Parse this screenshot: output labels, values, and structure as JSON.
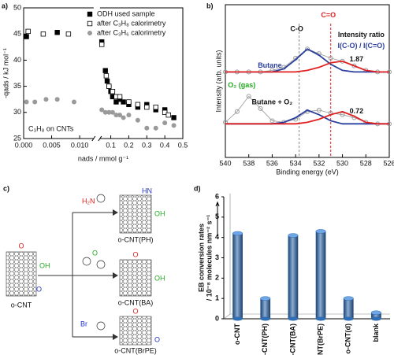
{
  "chart_data": [
    {
      "type": "scatter",
      "title": "a)",
      "xlabel": "nads / mmol g⁻¹",
      "ylabel": "-qads / kJ mol⁻¹",
      "annotations": [
        "C₃H₈ on CNTs"
      ],
      "xlim": [
        0,
        0.5
      ],
      "xbreak": [
        0.0125,
        0.04
      ],
      "xticks": [
        {
          "value": 0,
          "label": "0.000"
        },
        {
          "value": 0.005,
          "label": "0.005"
        },
        {
          "value": 0.01,
          "label": "0.010"
        },
        0.1,
        0.2,
        0.3,
        0.4,
        0.5
      ],
      "ylim": [
        25,
        50
      ],
      "yticks": [
        25,
        30,
        35,
        40,
        45,
        50
      ],
      "legend": "upper right",
      "series": [
        {
          "name": "ODH used sample",
          "color": "#000000",
          "marker": "filled-square",
          "x": [
            0.0005,
            0.006,
            0.05,
            0.07,
            0.08,
            0.09,
            0.1,
            0.11,
            0.13,
            0.15,
            0.17,
            0.2,
            0.25,
            0.3,
            0.35,
            0.4,
            0.45
          ],
          "values": [
            44.5,
            45.3,
            43.5,
            38,
            36,
            35,
            34,
            33,
            32,
            32.5,
            32,
            31.5,
            31,
            31.5,
            30.5,
            30.5,
            29
          ]
        },
        {
          "name": "after C₃H₈ calorimetry",
          "color": "#000000",
          "marker": "open-square",
          "x": [
            0.0008,
            0.0035,
            0.008,
            0.05,
            0.075,
            0.09,
            0.11,
            0.13,
            0.15,
            0.2,
            0.25,
            0.3,
            0.35,
            0.4,
            0.42
          ],
          "values": [
            45.5,
            45,
            45,
            43,
            37,
            35,
            34,
            33,
            33,
            32,
            31.5,
            31,
            31,
            30,
            29.5
          ]
        },
        {
          "name": "after C₃H₆ calorimetry",
          "color": "#9a9a9a",
          "marker": "circle",
          "x": [
            0.0005,
            0.002,
            0.004,
            0.006,
            0.009,
            0.05,
            0.07,
            0.09,
            0.11,
            0.13,
            0.15,
            0.17,
            0.2,
            0.25,
            0.3,
            0.35,
            0.4,
            0.45
          ],
          "values": [
            32,
            32,
            32.5,
            32.5,
            32,
            30.5,
            30,
            30,
            30,
            29.5,
            29.5,
            29,
            29.5,
            28.5,
            27,
            27,
            28,
            27.5
          ]
        }
      ]
    },
    {
      "type": "line",
      "title": "b)",
      "xlabel": "Binding energy (eV)",
      "ylabel": "Intensity (arb. units)",
      "annotations": [
        "C-O",
        "C=O",
        "Intensity ratio",
        "I(C-O) / I(C=O)",
        "1.87",
        "Butane",
        "O₂ (gas)",
        "Butane + O₂",
        "0.72"
      ],
      "reference_lines": [
        {
          "value": 533.7,
          "color": "#888888"
        },
        {
          "value": 531,
          "color": "#e02020"
        }
      ],
      "xlim": [
        540,
        526
      ],
      "xticks": [
        540,
        538,
        536,
        534,
        532,
        530,
        528,
        526
      ],
      "ylim": [
        0,
        100
      ],
      "x": [
        540,
        539,
        538,
        537,
        536,
        535,
        534,
        533,
        532,
        531,
        530,
        529,
        528,
        527,
        526
      ],
      "series": [
        {
          "color": "#999999",
          "marker": "circle",
          "values": [
            56,
            56,
            56,
            56,
            57,
            59,
            65,
            71,
            68,
            65,
            63,
            60,
            57,
            56,
            56
          ]
        },
        {
          "color": "#2a3f9e",
          "values": [
            56,
            56,
            56,
            56,
            56,
            58,
            64,
            71,
            67,
            61,
            57,
            56,
            56,
            56,
            56
          ]
        },
        {
          "color": "#e02020",
          "values": [
            56,
            56,
            56,
            56,
            56,
            56,
            56,
            57,
            59,
            62,
            63,
            60,
            57,
            56,
            56
          ]
        },
        {
          "color": "#999999",
          "marker": "circle",
          "values": [
            23,
            30,
            40,
            32,
            24,
            23,
            25,
            30,
            31,
            29,
            28,
            26,
            23,
            22,
            22
          ]
        },
        {
          "color": "#2a3f9e",
          "values": [
            22,
            22,
            22,
            22,
            22,
            23,
            26,
            31,
            28,
            24,
            22,
            22,
            22,
            22,
            22
          ]
        },
        {
          "color": "#e02020",
          "values": [
            22,
            22,
            22,
            22,
            22,
            22,
            22,
            23,
            25,
            28,
            30,
            27,
            23,
            22,
            22
          ]
        }
      ]
    },
    {
      "type": "bar",
      "title": "d)",
      "ylabel": [
        "EB conversion rates",
        "/ 10⁻⁸ molecules nm⁻² s⁻¹"
      ],
      "categories": [
        "o-CNT",
        "o-CNT(PH)",
        "o-CNT(BA)",
        "o-CNT(BrPE)",
        "o-CNT(d)",
        "blank"
      ],
      "values": [
        4.2,
        1.0,
        4.1,
        4.3,
        1.0,
        0.3
      ],
      "color": "#2f6db5",
      "ylim": [
        0,
        6
      ],
      "yticks": [
        0,
        1,
        2,
        3,
        4,
        5,
        6
      ]
    }
  ],
  "diagram": {
    "label": "c)",
    "start": "o-CNT",
    "products": [
      "o-CNT(PH)",
      "o-CNT(BA)",
      "o-CNT(BrPE)"
    ],
    "groups": [
      "O",
      "OH",
      "H₂N",
      "HN",
      "Br"
    ]
  }
}
